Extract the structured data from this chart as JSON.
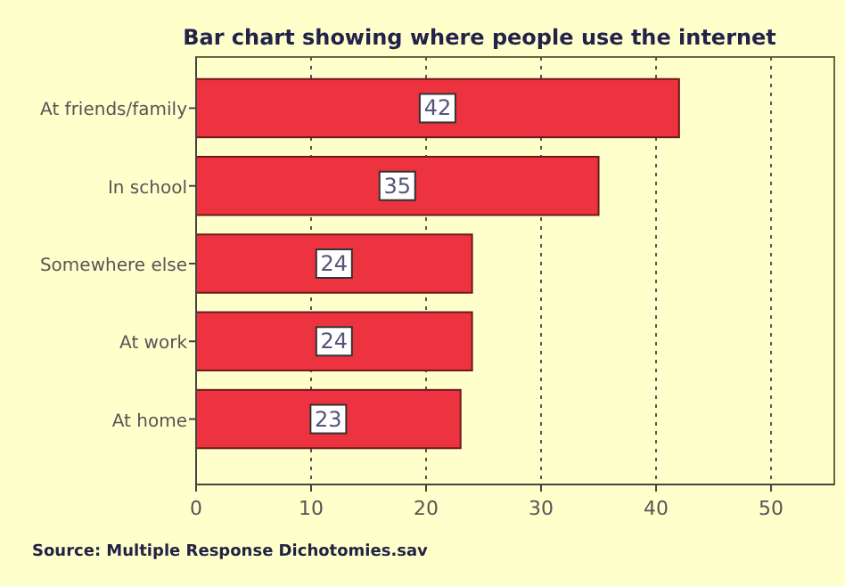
{
  "chart_data": {
    "type": "bar",
    "orientation": "horizontal",
    "title": "Bar chart showing where people use the internet",
    "categories": [
      "At friends/family",
      "In school",
      "Somewhere else",
      "At work",
      "At home"
    ],
    "values": [
      42,
      35,
      24,
      24,
      23
    ],
    "color": "#ee3340",
    "xlim": [
      0,
      55.5
    ],
    "xticks": [
      0,
      10,
      20,
      30,
      40,
      50
    ],
    "grid": "x",
    "data_labels": true,
    "annotations": [
      "Source: Multiple Response Dichotomies.sav"
    ]
  }
}
